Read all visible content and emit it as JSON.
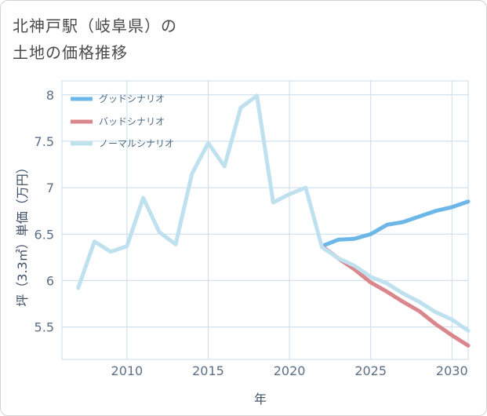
{
  "header": {
    "title_line1": "北神戸駅（岐阜県）の",
    "title_line2": "土地の価格推移"
  },
  "colors": {
    "good": "#6cb6e8",
    "bad": "#d9868c",
    "normal": "#bfe0ee",
    "grid": "#c8dcea"
  },
  "chart_data": {
    "type": "line",
    "title": "北神戸駅（岐阜県）の土地の価格推移",
    "xlabel": "年",
    "ylabel": "坪（3.3㎡）単価（万円）",
    "xlim": [
      2006,
      2031
    ],
    "ylim": [
      5.15,
      8.15
    ],
    "x_ticks": [
      2010,
      2015,
      2020,
      2025,
      2030
    ],
    "x_tick_labels": [
      "2010",
      "2015",
      "2020",
      "2025",
      "2030"
    ],
    "y_ticks": [
      5.5,
      6,
      6.5,
      7,
      7.5,
      8
    ],
    "y_tick_labels": [
      "5.5",
      "6",
      "6.5",
      "7",
      "7.5",
      "8"
    ],
    "grid": true,
    "legend_position": "top-left",
    "series": [
      {
        "name": "グッドシナリオ",
        "key": "good",
        "x": [
          2022,
          2023,
          2024,
          2025,
          2026,
          2027,
          2028,
          2029,
          2030,
          2031
        ],
        "values": [
          6.37,
          6.44,
          6.45,
          6.5,
          6.6,
          6.63,
          6.69,
          6.75,
          6.79,
          6.85
        ]
      },
      {
        "name": "バッドシナリオ",
        "key": "bad",
        "x": [
          2022,
          2023,
          2024,
          2025,
          2026,
          2027,
          2028,
          2029,
          2030,
          2031
        ],
        "values": [
          6.37,
          6.24,
          6.12,
          5.98,
          5.88,
          5.77,
          5.67,
          5.53,
          5.41,
          5.3
        ]
      },
      {
        "name": "ノーマルシナリオ",
        "key": "normal",
        "x": [
          2007,
          2008,
          2009,
          2010,
          2011,
          2012,
          2013,
          2014,
          2015,
          2016,
          2017,
          2018,
          2019,
          2020,
          2021,
          2022,
          2023,
          2024,
          2025,
          2026,
          2027,
          2028,
          2029,
          2030,
          2031
        ],
        "values": [
          5.92,
          6.42,
          6.31,
          6.37,
          6.89,
          6.52,
          6.39,
          7.15,
          7.48,
          7.23,
          7.86,
          7.99,
          6.84,
          6.93,
          7.0,
          6.36,
          6.24,
          6.16,
          6.04,
          5.97,
          5.86,
          5.77,
          5.66,
          5.58,
          5.46
        ]
      }
    ]
  }
}
